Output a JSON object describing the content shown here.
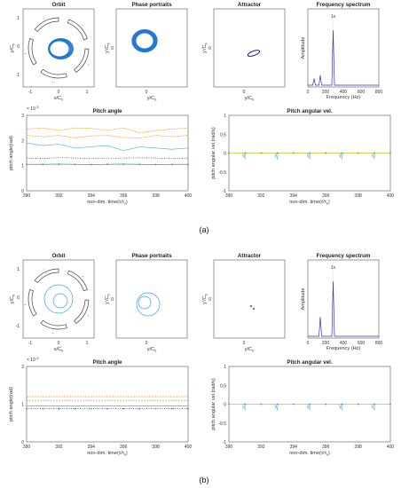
{
  "captions": {
    "a": "(a)",
    "b": "(b)"
  },
  "panels": {
    "a": {
      "orbit": {
        "title": "Orbit",
        "xlabel": "x/C",
        "xsub": "b",
        "ylabel": "y/C",
        "ysub": "b",
        "xticks": [
          "-1",
          "0",
          "1"
        ],
        "yticks": [
          "1",
          "0",
          "-1"
        ]
      },
      "phase": {
        "title": "Phase portraits",
        "xlabel": "y/C",
        "xsub": "b",
        "ylabel": "y'/C",
        "ysub": "b",
        "xticks": [
          "0"
        ],
        "yticks": [
          "0"
        ]
      },
      "attractor": {
        "title": "Attractor",
        "xlabel": "y/C",
        "xsub": "b",
        "ylabel": "y'/C",
        "ysub": "b",
        "xticks": [
          "0"
        ],
        "yticks": [
          "0"
        ]
      },
      "spectrum": {
        "title": "Frequency spectrum",
        "xlabel": "Frequency (Hz)",
        "ylabel": "Amplitude",
        "xticks": [
          "0",
          "200",
          "400",
          "600",
          "800"
        ],
        "annotation": "1x"
      },
      "pitch": {
        "title": "Pitch angle",
        "ylabel": "pitch angle(rad)",
        "xlabel": "non-dim. time(τ/τ",
        "xsub": "s",
        "xlabel_end": ")",
        "xticks": [
          "390",
          "392",
          "394",
          "396",
          "398",
          "400"
        ],
        "yticks": [
          "3",
          "2",
          "1",
          "0"
        ],
        "exponent": "× 10",
        "exponent_power": "-3"
      },
      "pitchvel": {
        "title": "Pitch angular vel.",
        "ylabel": "pitch angular vel.(rad/s)",
        "xlabel": "non-dim. time(τ/τ",
        "xsub": "s",
        "xlabel_end": ")",
        "xticks": [
          "390",
          "392",
          "394",
          "396",
          "398",
          "400"
        ],
        "yticks": [
          "1",
          "0.5",
          "0",
          "-0.5",
          "-1"
        ]
      }
    },
    "b": {
      "orbit": {
        "title": "Orbit",
        "xlabel": "x/C",
        "xsub": "b",
        "ylabel": "y/C",
        "ysub": "b",
        "xticks": [
          "-1",
          "0",
          "1"
        ],
        "yticks": [
          "1",
          "0",
          "-1"
        ]
      },
      "phase": {
        "title": "Phase portraits",
        "xlabel": "y/C",
        "xsub": "b",
        "ylabel": "y'/C",
        "ysub": "b",
        "xticks": [
          "0"
        ],
        "yticks": [
          "0"
        ]
      },
      "attractor": {
        "title": "Attractor",
        "xlabel": "y/C",
        "xsub": "b",
        "ylabel": "y'/C",
        "ysub": "b",
        "xticks": [
          "0"
        ],
        "yticks": [
          "0"
        ]
      },
      "spectrum": {
        "title": "Frequency spectrum",
        "xlabel": "Frequency (Hz)",
        "ylabel": "Amplitude",
        "xticks": [
          "0",
          "200",
          "400",
          "600",
          "800"
        ],
        "annotation": "1x"
      },
      "pitch": {
        "title": "Pitch angle",
        "ylabel": "pitch angle(rad)",
        "xlabel": "non-dim. time(τ/τ",
        "xsub": "s",
        "xlabel_end": ")",
        "xticks": [
          "390",
          "392",
          "394",
          "396",
          "398",
          "400"
        ],
        "yticks": [
          "2",
          "1",
          "0"
        ],
        "exponent": "× 10",
        "exponent_power": "-3"
      },
      "pitchvel": {
        "title": "Pitch angular vel.",
        "ylabel": "pitch angular vel.(rad/s)",
        "xlabel": "non-dim. time(τ/τ",
        "xsub": "s",
        "xlabel_end": ")",
        "xticks": [
          "390",
          "392",
          "394",
          "396",
          "398",
          "400"
        ],
        "yticks": [
          "1",
          "0.5",
          "0",
          "-0.5",
          "-1"
        ]
      }
    }
  },
  "colors": {
    "orbit_a": "#1f77d4",
    "orbit_b": "#3aa0e0",
    "pad": "#444444",
    "pad_red": "#e05050",
    "attractor": "#1a1a9a",
    "spectrum": "#3333aa",
    "pitch_orange": "#f0a030",
    "pitch_blue": "#5aaee8",
    "pitch_green": "#33aa55",
    "pitch_dark": "#333333",
    "zero_line": "#d4c020"
  },
  "chart_data": [
    {
      "panel": "a",
      "type": "line",
      "title": "Frequency spectrum",
      "xlabel": "Frequency (Hz)",
      "ylabel": "Amplitude",
      "xlim": [
        0,
        800
      ],
      "peaks": [
        {
          "x": 70,
          "y": 0.12
        },
        {
          "x": 140,
          "y": 0.18
        },
        {
          "x": 285,
          "y": 1.0
        }
      ],
      "annotation": "1x"
    },
    {
      "panel": "a",
      "type": "line",
      "title": "Pitch angle",
      "ylabel": "pitch angle(rad)",
      "xlim": [
        390,
        400
      ],
      "ylim": [
        0,
        0.003
      ],
      "series": [
        {
          "values": [
            0.00245,
            0.0025,
            0.0024,
            0.0025,
            0.00248,
            0.0024,
            0.0025,
            0.0023,
            0.0024,
            0.00245,
            0.0025
          ]
        },
        {
          "values": [
            0.0022,
            0.00215,
            0.0022,
            0.0021,
            0.00218,
            0.0022,
            0.00212,
            0.0021,
            0.0022,
            0.00215,
            0.0022
          ]
        },
        {
          "values": [
            0.0019,
            0.0018,
            0.00185,
            0.0017,
            0.00175,
            0.0018,
            0.0016,
            0.00175,
            0.0017,
            0.00165,
            0.0017
          ]
        },
        {
          "values": [
            0.0013,
            0.00128,
            0.00132,
            0.0013,
            0.00129,
            0.0013,
            0.0013,
            0.00131,
            0.0013,
            0.00128,
            0.0013
          ]
        },
        {
          "values": [
            0.00105,
            0.00105,
            0.00106,
            0.00105,
            0.00104,
            0.00105,
            0.00106,
            0.00105,
            0.00104,
            0.00105,
            0.00105
          ]
        }
      ]
    },
    {
      "panel": "a",
      "type": "line",
      "title": "Pitch angular vel.",
      "ylabel": "pitch angular vel.(rad/s)",
      "xlim": [
        390,
        400
      ],
      "ylim": [
        -1,
        1
      ],
      "series": [
        {
          "values": [
            0,
            0,
            0,
            0,
            0,
            0,
            0,
            0,
            0,
            0,
            0
          ]
        }
      ]
    },
    {
      "panel": "b",
      "type": "line",
      "title": "Frequency spectrum",
      "xlabel": "Frequency (Hz)",
      "ylabel": "Amplitude",
      "xlim": [
        0,
        800
      ],
      "peaks": [
        {
          "x": 140,
          "y": 0.35
        },
        {
          "x": 285,
          "y": 1.0
        }
      ],
      "annotation": "1x"
    },
    {
      "panel": "b",
      "type": "line",
      "title": "Pitch angle",
      "ylabel": "pitch angle(rad)",
      "xlim": [
        390,
        400
      ],
      "ylim": [
        0,
        0.002
      ],
      "series": [
        {
          "values": [
            0.0012,
            0.0012,
            0.0012,
            0.0012,
            0.0012,
            0.0012,
            0.0012,
            0.0012,
            0.0012,
            0.0012,
            0.0012
          ]
        },
        {
          "values": [
            0.0011,
            0.0011,
            0.0011,
            0.0011,
            0.0011,
            0.0011,
            0.0011,
            0.0011,
            0.0011,
            0.0011,
            0.0011
          ]
        },
        {
          "values": [
            0.00095,
            0.00095,
            0.00095,
            0.00095,
            0.00095,
            0.00095,
            0.00095,
            0.00095,
            0.00095,
            0.00095,
            0.00095
          ]
        },
        {
          "values": [
            0.00088,
            0.00088,
            0.00088,
            0.00088,
            0.00088,
            0.00088,
            0.00088,
            0.00088,
            0.00088,
            0.00088,
            0.00088
          ]
        }
      ]
    },
    {
      "panel": "b",
      "type": "line",
      "title": "Pitch angular vel.",
      "ylabel": "pitch angular vel.(rad/s)",
      "xlim": [
        390,
        400
      ],
      "ylim": [
        -1,
        1
      ],
      "series": [
        {
          "values": [
            0,
            0,
            0,
            0,
            0,
            0,
            0,
            0,
            0,
            0,
            0
          ]
        }
      ]
    }
  ]
}
